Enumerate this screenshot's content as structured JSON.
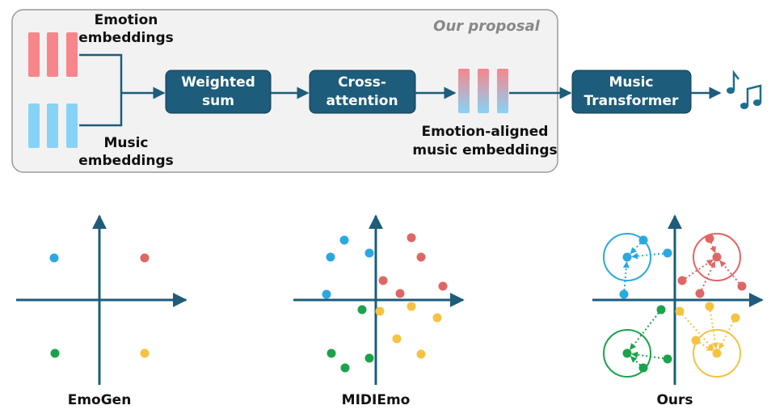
{
  "proposal": {
    "title": "Our proposal",
    "emotion_embeddings": [
      "Emotion",
      "embeddings"
    ],
    "music_embeddings": [
      "Music",
      "embeddings"
    ],
    "weighted_sum": [
      "Weighted",
      "sum"
    ],
    "cross_attention": [
      "Cross-",
      "attention"
    ],
    "aligned_embeddings": [
      "Emotion-aligned",
      "music embeddings"
    ],
    "music_transformer": [
      "Music",
      "Transformer"
    ]
  },
  "panels": [
    "EmoGen",
    "MIDIEmo",
    "Ours"
  ]
}
